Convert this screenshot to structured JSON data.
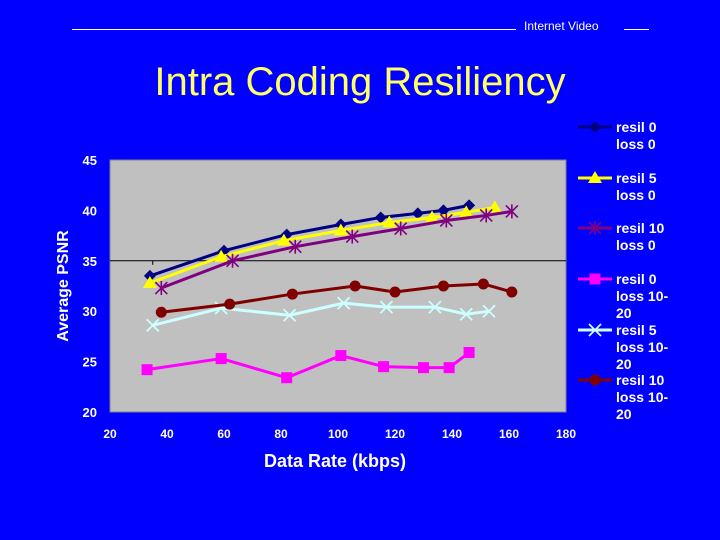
{
  "header": {
    "label": "Internet Video"
  },
  "slide": {
    "title": "Intra Coding Resiliency"
  },
  "chart_data": {
    "type": "line",
    "title": "",
    "xlabel": "Data Rate (kbps)",
    "ylabel": "Average PSNR",
    "xlim": [
      20,
      180
    ],
    "ylim": [
      20,
      45
    ],
    "xticks": [
      "20",
      "40",
      "60",
      "80",
      "100",
      "120",
      "140",
      "160",
      "180"
    ],
    "yticks": [
      "20",
      "25",
      "30",
      "35",
      "40",
      "45"
    ],
    "background": "#c0c0c0",
    "series": [
      {
        "name": "resil 0 loss 0",
        "label_lines": [
          "resil 0",
          "loss 0"
        ],
        "color": "#000080",
        "marker": "diamond",
        "points": [
          [
            34,
            33.5
          ],
          [
            60,
            36
          ],
          [
            82,
            37.6
          ],
          [
            101,
            38.6
          ],
          [
            115,
            39.3
          ],
          [
            128,
            39.7
          ],
          [
            137,
            40
          ],
          [
            146,
            40.5
          ]
        ]
      },
      {
        "name": "resil 5 loss 0",
        "label_lines": [
          "resil 5",
          "loss 0"
        ],
        "color": "#ffff00",
        "marker": "triangle",
        "points": [
          [
            34,
            32.8
          ],
          [
            59,
            35.4
          ],
          [
            81,
            37
          ],
          [
            101,
            38
          ],
          [
            118,
            38.8
          ],
          [
            133,
            39.3
          ],
          [
            145,
            39.8
          ],
          [
            155,
            40.3
          ]
        ]
      },
      {
        "name": "resil 10 loss 0",
        "label_lines": [
          "resil 10",
          "loss 0"
        ],
        "color": "#800080",
        "marker": "star",
        "points": [
          [
            38,
            32.3
          ],
          [
            63,
            35
          ],
          [
            85,
            36.4
          ],
          [
            105,
            37.4
          ],
          [
            122,
            38.2
          ],
          [
            138,
            39
          ],
          [
            152,
            39.5
          ],
          [
            161,
            39.9
          ]
        ]
      },
      {
        "name": "resil 0 loss 10-20",
        "label_lines": [
          "resil 0",
          "loss 10-",
          "20"
        ],
        "color": "#ff00ff",
        "marker": "square",
        "points": [
          [
            33,
            24.2
          ],
          [
            59,
            25.3
          ],
          [
            82,
            23.4
          ],
          [
            101,
            25.6
          ],
          [
            116,
            24.5
          ],
          [
            130,
            24.4
          ],
          [
            139,
            24.4
          ],
          [
            146,
            25.9
          ]
        ]
      },
      {
        "name": "resil 5 loss 10-20",
        "label_lines": [
          "resil 5",
          "loss 10-",
          "20"
        ],
        "color": "#ccffff",
        "marker": "x",
        "points": [
          [
            35,
            28.6
          ],
          [
            59,
            30.3
          ],
          [
            83,
            29.6
          ],
          [
            102,
            30.8
          ],
          [
            117,
            30.4
          ],
          [
            134,
            30.4
          ],
          [
            145,
            29.7
          ],
          [
            153,
            30
          ]
        ]
      },
      {
        "name": "resil 10 loss 10-20",
        "label_lines": [
          "resil 10",
          "loss 10-",
          "20"
        ],
        "color": "#800000",
        "marker": "circle",
        "points": [
          [
            38,
            29.9
          ],
          [
            62,
            30.7
          ],
          [
            84,
            31.7
          ],
          [
            106,
            32.5
          ],
          [
            120,
            31.9
          ],
          [
            137,
            32.5
          ],
          [
            151,
            32.7
          ],
          [
            161,
            31.9
          ]
        ]
      }
    ]
  }
}
